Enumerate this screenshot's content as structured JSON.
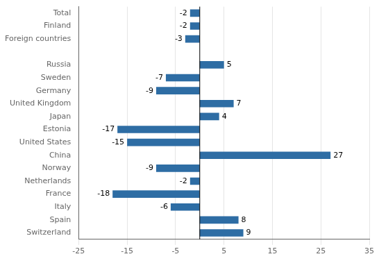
{
  "chart_data": {
    "type": "bar",
    "orientation": "horizontal",
    "categories": [
      "Total",
      "Finland",
      "Foreign countries",
      null,
      "Russia",
      "Sweden",
      "Germany",
      "United Kingdom",
      "Japan",
      "Estonia",
      "United States",
      "China",
      "Norway",
      "Netherlands",
      "France",
      "Italy",
      "Spain",
      "Switzerland"
    ],
    "values": [
      -2,
      -2,
      -3,
      null,
      5,
      -7,
      -9,
      7,
      4,
      -17,
      -15,
      27,
      -9,
      -2,
      -18,
      -6,
      8,
      9
    ],
    "color": "#2E6DA4",
    "xlim": [
      -25,
      35
    ],
    "xticks": [
      -25,
      -15,
      -5,
      5,
      15,
      25,
      35
    ],
    "grid": true,
    "data_labels": true
  }
}
